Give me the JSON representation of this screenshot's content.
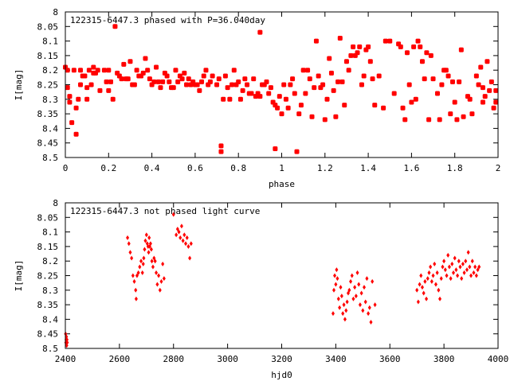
{
  "charts": [
    {
      "type": "scatter",
      "title": "122315-6447.3 phased with P=36.040day",
      "xlabel": "phase",
      "ylabel": "I[mag]",
      "xlim": [
        0,
        2
      ],
      "ylim": [
        8.5,
        8
      ],
      "y_inverted": true,
      "grid": false,
      "marker_color": "#ff0000",
      "marker": "filled-square",
      "x_ticks": [
        "0",
        "0.2",
        "0.4",
        "0.6",
        "0.8",
        "1",
        "1.2",
        "1.4",
        "1.6",
        "1.8",
        "2"
      ],
      "y_ticks": [
        "8",
        "8.05",
        "8.1",
        "8.15",
        "8.2",
        "8.25",
        "8.3",
        "8.35",
        "8.4",
        "8.45",
        "8.5"
      ],
      "points": [
        [
          0.0,
          8.19
        ],
        [
          0.01,
          8.2
        ],
        [
          0.01,
          8.26
        ],
        [
          0.02,
          8.29
        ],
        [
          0.02,
          8.31
        ],
        [
          0.03,
          8.38
        ],
        [
          0.04,
          8.2
        ],
        [
          0.05,
          8.42
        ],
        [
          0.05,
          8.33
        ],
        [
          0.06,
          8.3
        ],
        [
          0.07,
          8.2
        ],
        [
          0.07,
          8.25
        ],
        [
          0.08,
          8.22
        ],
        [
          0.09,
          8.22
        ],
        [
          0.1,
          8.3
        ],
        [
          0.1,
          8.26
        ],
        [
          0.11,
          8.2
        ],
        [
          0.12,
          8.25
        ],
        [
          0.13,
          8.21
        ],
        [
          0.13,
          8.19
        ],
        [
          0.14,
          8.21
        ],
        [
          0.15,
          8.2
        ],
        [
          0.16,
          8.27
        ],
        [
          0.18,
          8.2
        ],
        [
          0.19,
          8.24
        ],
        [
          0.2,
          8.2
        ],
        [
          0.2,
          8.27
        ],
        [
          0.21,
          8.24
        ],
        [
          0.22,
          8.3
        ],
        [
          0.23,
          8.05
        ],
        [
          0.24,
          8.21
        ],
        [
          0.25,
          8.22
        ],
        [
          0.26,
          8.23
        ],
        [
          0.27,
          8.18
        ],
        [
          0.28,
          8.23
        ],
        [
          0.29,
          8.23
        ],
        [
          0.3,
          8.17
        ],
        [
          0.31,
          8.25
        ],
        [
          0.32,
          8.25
        ],
        [
          0.33,
          8.2
        ],
        [
          0.34,
          8.22
        ],
        [
          0.35,
          8.22
        ],
        [
          0.36,
          8.21
        ],
        [
          0.37,
          8.16
        ],
        [
          0.38,
          8.2
        ],
        [
          0.39,
          8.23
        ],
        [
          0.4,
          8.25
        ],
        [
          0.41,
          8.24
        ],
        [
          0.42,
          8.19
        ],
        [
          0.43,
          8.24
        ],
        [
          0.44,
          8.26
        ],
        [
          0.45,
          8.24
        ],
        [
          0.46,
          8.21
        ],
        [
          0.47,
          8.22
        ],
        [
          0.48,
          8.24
        ],
        [
          0.49,
          8.26
        ],
        [
          0.5,
          8.26
        ],
        [
          0.51,
          8.2
        ],
        [
          0.52,
          8.24
        ],
        [
          0.53,
          8.22
        ],
        [
          0.54,
          8.23
        ],
        [
          0.55,
          8.21
        ],
        [
          0.56,
          8.25
        ],
        [
          0.57,
          8.23
        ],
        [
          0.58,
          8.25
        ],
        [
          0.59,
          8.24
        ],
        [
          0.6,
          8.25
        ],
        [
          0.61,
          8.25
        ],
        [
          0.62,
          8.27
        ],
        [
          0.63,
          8.24
        ],
        [
          0.64,
          8.22
        ],
        [
          0.65,
          8.2
        ],
        [
          0.66,
          8.25
        ],
        [
          0.67,
          8.24
        ],
        [
          0.68,
          8.22
        ],
        [
          0.7,
          8.25
        ],
        [
          0.71,
          8.23
        ],
        [
          0.72,
          8.46
        ],
        [
          0.72,
          8.48
        ],
        [
          0.73,
          8.3
        ],
        [
          0.74,
          8.22
        ],
        [
          0.75,
          8.26
        ],
        [
          0.76,
          8.3
        ],
        [
          0.77,
          8.25
        ],
        [
          0.78,
          8.2
        ],
        [
          0.79,
          8.25
        ],
        [
          0.8,
          8.24
        ],
        [
          0.81,
          8.3
        ],
        [
          0.82,
          8.27
        ],
        [
          0.83,
          8.23
        ],
        [
          0.84,
          8.25
        ],
        [
          0.85,
          8.28
        ],
        [
          0.86,
          8.28
        ],
        [
          0.87,
          8.23
        ],
        [
          0.88,
          8.29
        ],
        [
          0.89,
          8.28
        ],
        [
          0.9,
          8.07
        ],
        [
          0.9,
          8.29
        ],
        [
          0.91,
          8.25
        ],
        [
          0.92,
          8.25
        ],
        [
          0.93,
          8.24
        ],
        [
          0.94,
          8.28
        ],
        [
          0.95,
          8.26
        ],
        [
          0.96,
          8.31
        ],
        [
          0.97,
          8.32
        ],
        [
          0.97,
          8.47
        ],
        [
          0.98,
          8.33
        ],
        [
          0.99,
          8.29
        ],
        [
          1.0,
          8.35
        ],
        [
          1.01,
          8.25
        ],
        [
          1.02,
          8.3
        ],
        [
          1.03,
          8.33
        ],
        [
          1.04,
          8.25
        ],
        [
          1.05,
          8.23
        ],
        [
          1.06,
          8.28
        ],
        [
          1.07,
          8.48
        ],
        [
          1.08,
          8.35
        ],
        [
          1.09,
          8.32
        ],
        [
          1.1,
          8.2
        ],
        [
          1.11,
          8.28
        ],
        [
          1.12,
          8.2
        ],
        [
          1.13,
          8.23
        ],
        [
          1.14,
          8.36
        ],
        [
          1.15,
          8.26
        ],
        [
          1.16,
          8.1
        ],
        [
          1.17,
          8.22
        ],
        [
          1.18,
          8.26
        ],
        [
          1.19,
          8.25
        ],
        [
          1.2,
          8.37
        ],
        [
          1.21,
          8.3
        ],
        [
          1.22,
          8.16
        ],
        [
          1.23,
          8.21
        ],
        [
          1.24,
          8.27
        ],
        [
          1.25,
          8.36
        ],
        [
          1.26,
          8.24
        ],
        [
          1.27,
          8.09
        ],
        [
          1.28,
          8.24
        ],
        [
          1.29,
          8.32
        ],
        [
          1.3,
          8.17
        ],
        [
          1.31,
          8.2
        ],
        [
          1.32,
          8.15
        ],
        [
          1.33,
          8.12
        ],
        [
          1.34,
          8.15
        ],
        [
          1.35,
          8.14
        ],
        [
          1.36,
          8.12
        ],
        [
          1.37,
          8.25
        ],
        [
          1.38,
          8.22
        ],
        [
          1.39,
          8.13
        ],
        [
          1.4,
          8.12
        ],
        [
          1.41,
          8.17
        ],
        [
          1.42,
          8.23
        ],
        [
          1.43,
          8.32
        ],
        [
          1.45,
          8.22
        ],
        [
          1.47,
          8.33
        ],
        [
          1.48,
          8.1
        ],
        [
          1.5,
          8.1
        ],
        [
          1.52,
          8.28
        ],
        [
          1.54,
          8.11
        ],
        [
          1.55,
          8.12
        ],
        [
          1.56,
          8.33
        ],
        [
          1.57,
          8.37
        ],
        [
          1.58,
          8.14
        ],
        [
          1.59,
          8.25
        ],
        [
          1.6,
          8.31
        ],
        [
          1.61,
          8.12
        ],
        [
          1.62,
          8.3
        ],
        [
          1.63,
          8.1
        ],
        [
          1.64,
          8.12
        ],
        [
          1.65,
          8.17
        ],
        [
          1.66,
          8.23
        ],
        [
          1.67,
          8.14
        ],
        [
          1.68,
          8.37
        ],
        [
          1.69,
          8.15
        ],
        [
          1.7,
          8.23
        ],
        [
          1.72,
          8.28
        ],
        [
          1.73,
          8.37
        ],
        [
          1.74,
          8.25
        ],
        [
          1.75,
          8.2
        ],
        [
          1.76,
          8.2
        ],
        [
          1.77,
          8.22
        ],
        [
          1.78,
          8.35
        ],
        [
          1.79,
          8.24
        ],
        [
          1.8,
          8.31
        ],
        [
          1.81,
          8.37
        ],
        [
          1.82,
          8.24
        ],
        [
          1.83,
          8.13
        ],
        [
          1.84,
          8.36
        ],
        [
          1.86,
          8.29
        ],
        [
          1.87,
          8.3
        ],
        [
          1.88,
          8.35
        ],
        [
          1.9,
          8.22
        ],
        [
          1.91,
          8.25
        ],
        [
          1.92,
          8.19
        ],
        [
          1.93,
          8.31
        ],
        [
          1.93,
          8.26
        ],
        [
          1.94,
          8.29
        ],
        [
          1.95,
          8.17
        ],
        [
          1.96,
          8.27
        ],
        [
          1.97,
          8.24
        ],
        [
          1.98,
          8.33
        ],
        [
          1.99,
          8.31
        ],
        [
          1.99,
          8.27
        ]
      ]
    },
    {
      "type": "scatter",
      "title": "122315-6447.3 not phased light curve",
      "xlabel": "hjd0",
      "ylabel": "I[mag]",
      "xlim": [
        2400,
        4000
      ],
      "ylim": [
        8.5,
        8
      ],
      "y_inverted": true,
      "grid": false,
      "marker_color": "#ff0000",
      "marker": "diamond",
      "x_ticks": [
        "2400",
        "2600",
        "2800",
        "3000",
        "3200",
        "3400",
        "3600",
        "3800",
        "4000"
      ],
      "y_ticks": [
        "8",
        "8.05",
        "8.1",
        "8.15",
        "8.2",
        "8.25",
        "8.3",
        "8.35",
        "8.4",
        "8.45",
        "8.5"
      ],
      "points": [
        [
          2401,
          8.45
        ],
        [
          2402,
          8.48
        ],
        [
          2403,
          8.47
        ],
        [
          2404,
          8.46
        ],
        [
          2405,
          8.49
        ],
        [
          2406,
          8.47
        ],
        [
          2407,
          8.48
        ],
        [
          2630,
          8.12
        ],
        [
          2635,
          8.14
        ],
        [
          2640,
          8.17
        ],
        [
          2645,
          8.19
        ],
        [
          2650,
          8.25
        ],
        [
          2655,
          8.27
        ],
        [
          2660,
          8.3
        ],
        [
          2662,
          8.33
        ],
        [
          2665,
          8.25
        ],
        [
          2670,
          8.24
        ],
        [
          2675,
          8.22
        ],
        [
          2680,
          8.2
        ],
        [
          2685,
          8.24
        ],
        [
          2688,
          8.21
        ],
        [
          2690,
          8.19
        ],
        [
          2693,
          8.16
        ],
        [
          2696,
          8.13
        ],
        [
          2700,
          8.11
        ],
        [
          2703,
          8.14
        ],
        [
          2706,
          8.15
        ],
        [
          2708,
          8.17
        ],
        [
          2710,
          8.12
        ],
        [
          2712,
          8.15
        ],
        [
          2715,
          8.14
        ],
        [
          2718,
          8.16
        ],
        [
          2720,
          8.2
        ],
        [
          2724,
          8.22
        ],
        [
          2728,
          8.19
        ],
        [
          2732,
          8.2
        ],
        [
          2736,
          8.24
        ],
        [
          2740,
          8.28
        ],
        [
          2745,
          8.25
        ],
        [
          2750,
          8.3
        ],
        [
          2755,
          8.27
        ],
        [
          2760,
          8.21
        ],
        [
          2765,
          8.26
        ],
        [
          2800,
          8.04
        ],
        [
          2810,
          8.11
        ],
        [
          2815,
          8.09
        ],
        [
          2820,
          8.1
        ],
        [
          2825,
          8.12
        ],
        [
          2830,
          8.08
        ],
        [
          2835,
          8.13
        ],
        [
          2840,
          8.11
        ],
        [
          2845,
          8.14
        ],
        [
          2850,
          8.12
        ],
        [
          2855,
          8.15
        ],
        [
          2860,
          8.19
        ],
        [
          2865,
          8.14
        ],
        [
          3390,
          8.38
        ],
        [
          3393,
          8.3
        ],
        [
          3396,
          8.25
        ],
        [
          3400,
          8.28
        ],
        [
          3403,
          8.23
        ],
        [
          3406,
          8.26
        ],
        [
          3410,
          8.33
        ],
        [
          3414,
          8.36
        ],
        [
          3418,
          8.29
        ],
        [
          3422,
          8.32
        ],
        [
          3426,
          8.38
        ],
        [
          3430,
          8.35
        ],
        [
          3434,
          8.4
        ],
        [
          3438,
          8.37
        ],
        [
          3442,
          8.34
        ],
        [
          3446,
          8.31
        ],
        [
          3450,
          8.3
        ],
        [
          3455,
          8.27
        ],
        [
          3460,
          8.25
        ],
        [
          3465,
          8.33
        ],
        [
          3470,
          8.29
        ],
        [
          3475,
          8.32
        ],
        [
          3480,
          8.24
        ],
        [
          3485,
          8.28
        ],
        [
          3490,
          8.35
        ],
        [
          3495,
          8.31
        ],
        [
          3500,
          8.37
        ],
        [
          3505,
          8.29
        ],
        [
          3510,
          8.34
        ],
        [
          3515,
          8.26
        ],
        [
          3520,
          8.38
        ],
        [
          3525,
          8.36
        ],
        [
          3530,
          8.41
        ],
        [
          3535,
          8.27
        ],
        [
          3545,
          8.35
        ],
        [
          3700,
          8.3
        ],
        [
          3705,
          8.34
        ],
        [
          3710,
          8.28
        ],
        [
          3715,
          8.25
        ],
        [
          3720,
          8.29
        ],
        [
          3725,
          8.31
        ],
        [
          3730,
          8.27
        ],
        [
          3735,
          8.33
        ],
        [
          3740,
          8.26
        ],
        [
          3745,
          8.24
        ],
        [
          3750,
          8.22
        ],
        [
          3755,
          8.27
        ],
        [
          3760,
          8.25
        ],
        [
          3765,
          8.21
        ],
        [
          3770,
          8.28
        ],
        [
          3775,
          8.24
        ],
        [
          3780,
          8.3
        ],
        [
          3785,
          8.33
        ],
        [
          3790,
          8.26
        ],
        [
          3795,
          8.22
        ],
        [
          3800,
          8.2
        ],
        [
          3805,
          8.23
        ],
        [
          3810,
          8.25
        ],
        [
          3815,
          8.18
        ],
        [
          3820,
          8.22
        ],
        [
          3825,
          8.26
        ],
        [
          3830,
          8.21
        ],
        [
          3835,
          8.24
        ],
        [
          3840,
          8.19
        ],
        [
          3845,
          8.23
        ],
        [
          3850,
          8.25
        ],
        [
          3855,
          8.2
        ],
        [
          3860,
          8.22
        ],
        [
          3865,
          8.26
        ],
        [
          3870,
          8.21
        ],
        [
          3875,
          8.24
        ],
        [
          3880,
          8.2
        ],
        [
          3885,
          8.23
        ],
        [
          3890,
          8.17
        ],
        [
          3895,
          8.22
        ],
        [
          3900,
          8.25
        ],
        [
          3905,
          8.2
        ],
        [
          3910,
          8.24
        ],
        [
          3915,
          8.22
        ],
        [
          3920,
          8.25
        ],
        [
          3925,
          8.23
        ],
        [
          3930,
          8.22
        ]
      ]
    }
  ]
}
